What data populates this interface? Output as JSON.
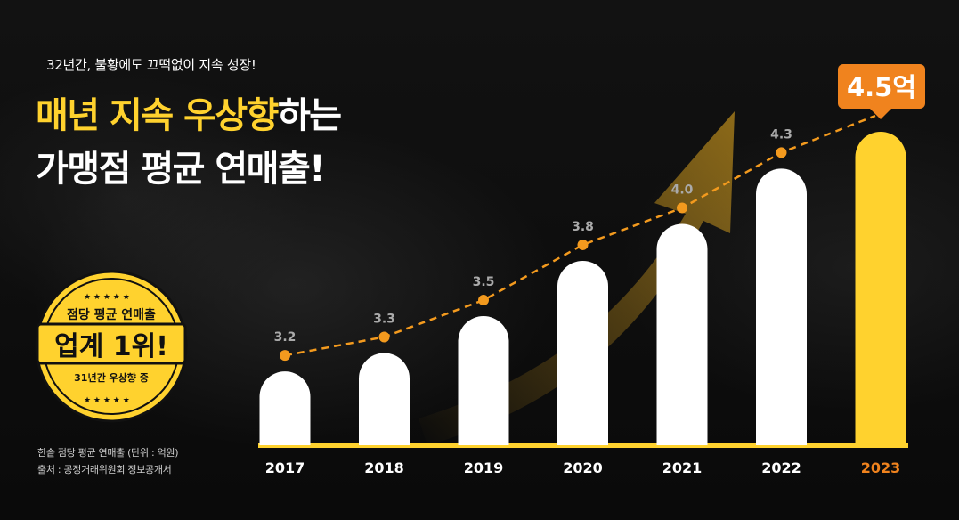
{
  "tagline": "32년간, 불황에도 끄떡없이 지속 성장!",
  "headline": {
    "line1_highlight_a": "매년 지속",
    "line1_highlight_b": "우상향",
    "line1_rest": "하는",
    "line2": "가맹점 평균 연매출!"
  },
  "badge": {
    "top": "점당 평균 연매출",
    "main": "업계 1위!",
    "bottom": "31년간 우상향 중"
  },
  "source": {
    "line1": "한솥 점당 평균 연매출 (단위 : 억원)",
    "line2": "출처 : 공정거래위원회 정보공개서"
  },
  "colors": {
    "accent": "#ffd22e",
    "marker": "#f39a1e",
    "callout": "#f0831e",
    "bar": "#ffffff",
    "label": "#aaaaaa"
  },
  "chart_data": {
    "type": "bar",
    "categories": [
      "2017",
      "2018",
      "2019",
      "2020",
      "2021",
      "2022",
      "2023"
    ],
    "values": [
      3.2,
      3.3,
      3.5,
      3.8,
      4.0,
      4.3,
      4.5
    ],
    "value_labels": [
      "3.2",
      "3.3",
      "3.5",
      "3.8",
      "4.0",
      "4.3",
      "4.5억"
    ],
    "highlight_index": 6,
    "trend_line": true,
    "grid": false,
    "legend": "none"
  }
}
